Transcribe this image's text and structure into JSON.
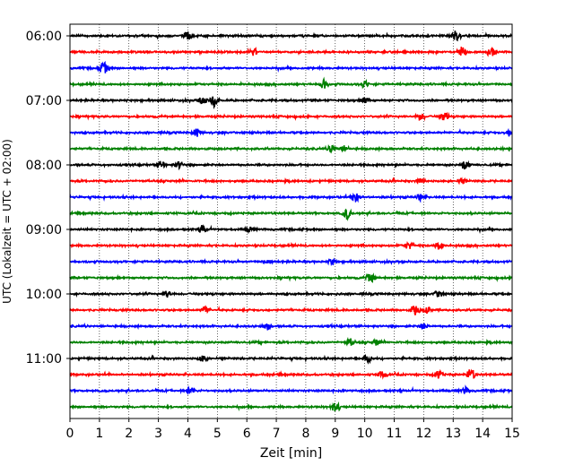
{
  "chart_data": {
    "type": "line",
    "title": "",
    "xlabel": "Zeit  [min]",
    "ylabel": "UTC (Lokalzeit = UTC + 02:00)",
    "xlim": [
      0,
      15
    ],
    "x_ticks": [
      0,
      1,
      2,
      3,
      4,
      5,
      6,
      7,
      8,
      9,
      10,
      11,
      12,
      13,
      14,
      15
    ],
    "y_tick_labels": [
      "06:00",
      "07:00",
      "08:00",
      "09:00",
      "10:00",
      "11:00"
    ],
    "y_tick_trace_index": [
      0,
      4,
      8,
      12,
      16,
      20
    ],
    "grid": "vertical dotted",
    "colors": [
      "#000000",
      "#ff0000",
      "#0000ff",
      "#008000"
    ],
    "traces": [
      {
        "label": "06:00",
        "events": [
          [
            4.0,
            0.5
          ],
          [
            13.1,
            0.7
          ]
        ]
      },
      {
        "label": "06:15",
        "events": [
          [
            6.2,
            0.5
          ],
          [
            13.3,
            0.6
          ],
          [
            14.3,
            0.7
          ]
        ]
      },
      {
        "label": "06:30",
        "events": [
          [
            1.1,
            0.5
          ],
          [
            1.2,
            0.3
          ]
        ]
      },
      {
        "label": "06:45",
        "events": [
          [
            8.6,
            0.6
          ],
          [
            10.0,
            0.4
          ]
        ]
      },
      {
        "label": "07:00",
        "events": [
          [
            4.5,
            0.5
          ],
          [
            4.9,
            0.8
          ],
          [
            10.0,
            0.5
          ]
        ]
      },
      {
        "label": "07:15",
        "events": [
          [
            11.9,
            0.5
          ],
          [
            12.7,
            0.6
          ]
        ]
      },
      {
        "label": "07:30",
        "events": [
          [
            4.3,
            0.5
          ],
          [
            14.9,
            0.4
          ]
        ]
      },
      {
        "label": "07:45",
        "events": [
          [
            8.9,
            0.5
          ],
          [
            9.3,
            0.4
          ]
        ]
      },
      {
        "label": "08:00",
        "events": [
          [
            3.1,
            0.5
          ],
          [
            3.7,
            0.4
          ],
          [
            13.4,
            0.7
          ]
        ]
      },
      {
        "label": "08:15",
        "events": [
          [
            11.9,
            0.4
          ],
          [
            13.3,
            0.4
          ]
        ]
      },
      {
        "label": "08:30",
        "events": [
          [
            9.7,
            0.6
          ],
          [
            11.9,
            0.4
          ]
        ]
      },
      {
        "label": "08:45",
        "events": [
          [
            9.4,
            0.7
          ]
        ]
      },
      {
        "label": "09:00",
        "events": [
          [
            4.5,
            0.5
          ],
          [
            6.1,
            0.3
          ]
        ]
      },
      {
        "label": "09:15",
        "events": [
          [
            11.5,
            0.5
          ],
          [
            12.5,
            0.5
          ]
        ]
      },
      {
        "label": "09:30",
        "events": [
          [
            6.7,
            0.4
          ],
          [
            8.9,
            0.4
          ]
        ]
      },
      {
        "label": "09:45",
        "events": [
          [
            10.2,
            0.6
          ]
        ]
      },
      {
        "label": "10:00",
        "events": [
          [
            3.3,
            0.4
          ],
          [
            12.5,
            0.5
          ]
        ]
      },
      {
        "label": "10:15",
        "events": [
          [
            4.6,
            0.5
          ],
          [
            11.7,
            0.6
          ],
          [
            12.1,
            0.4
          ]
        ]
      },
      {
        "label": "10:30",
        "events": [
          [
            6.7,
            0.4
          ],
          [
            12.0,
            0.4
          ]
        ]
      },
      {
        "label": "10:45",
        "events": [
          [
            9.5,
            0.5
          ],
          [
            10.4,
            0.4
          ]
        ]
      },
      {
        "label": "11:00",
        "events": [
          [
            4.5,
            0.4
          ],
          [
            10.1,
            0.5
          ]
        ]
      },
      {
        "label": "11:15",
        "events": [
          [
            10.6,
            0.5
          ],
          [
            12.5,
            0.5
          ],
          [
            13.6,
            0.8
          ]
        ]
      },
      {
        "label": "11:30",
        "events": [
          [
            4.1,
            0.5
          ],
          [
            13.4,
            0.4
          ]
        ]
      },
      {
        "label": "11:45",
        "events": [
          [
            9.0,
            0.7
          ]
        ]
      }
    ]
  }
}
